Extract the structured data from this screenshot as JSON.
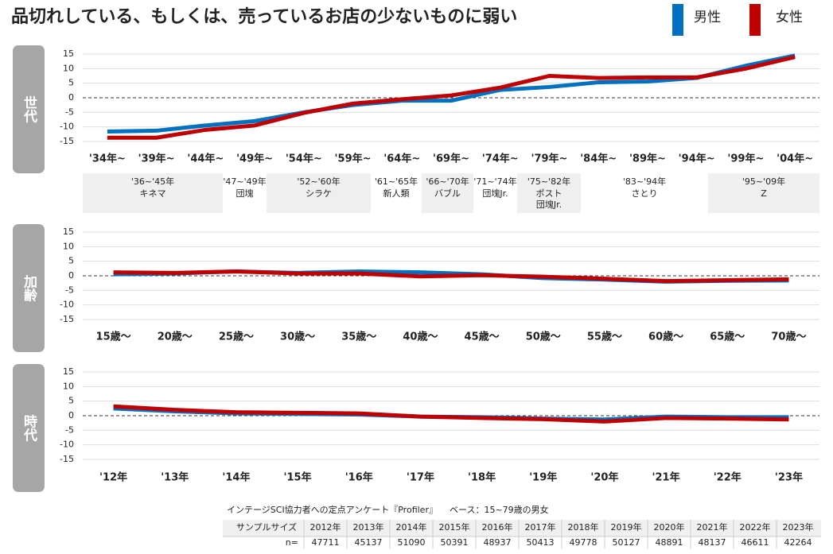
{
  "title": "品切れしている、もしくは、売っているお店の少ないものに弱い",
  "chart_data": [
    {
      "type": "line",
      "side_label": "世代",
      "categories": [
        "'34年~",
        "'39年~",
        "'44年~",
        "'49年~",
        "'54年~",
        "'59年~",
        "'64年~",
        "'69年~",
        "'74年~",
        "'79年~",
        "'84年~",
        "'89年~",
        "'94年~",
        "'99年~",
        "'04年~"
      ],
      "series": [
        {
          "name": "男性",
          "color": "#0070c0",
          "values": [
            -11.6,
            -11.3,
            -9.5,
            -8,
            -5,
            -2.5,
            -1,
            -1,
            2.7,
            3.7,
            5.3,
            5.6,
            6.8,
            11,
            14.5
          ]
        },
        {
          "name": "女性",
          "color": "#c00000",
          "values": [
            -13.7,
            -13.7,
            -11,
            -9.5,
            -5.2,
            -2,
            -0.5,
            0.8,
            3.5,
            7.5,
            6.8,
            7,
            7,
            10,
            14
          ]
        }
      ],
      "ylim": [
        -15,
        15
      ],
      "yticks": [
        15,
        10,
        5,
        0,
        -5,
        -10,
        -15
      ],
      "grid": true
    },
    {
      "type": "line",
      "side_label": "加齢",
      "categories": [
        "15歳～",
        "20歳～",
        "25歳～",
        "30歳～",
        "35歳～",
        "40歳～",
        "45歳～",
        "50歳～",
        "55歳～",
        "60歳～",
        "65歳～",
        "70歳～"
      ],
      "series": [
        {
          "name": "男性",
          "color": "#0070c0",
          "values": [
            0.5,
            0.8,
            1.5,
            1,
            1.5,
            1.2,
            0.5,
            -0.8,
            -1.3,
            -2,
            -1.7,
            -1.6
          ]
        },
        {
          "name": "女性",
          "color": "#c00000",
          "values": [
            1.2,
            1,
            1.5,
            0.8,
            0.8,
            -0.2,
            0.2,
            -0.3,
            -1,
            -1.8,
            -1.5,
            -1.2
          ]
        }
      ],
      "ylim": [
        -15,
        15
      ],
      "yticks": [
        15,
        10,
        5,
        0,
        -5,
        -10,
        -15
      ],
      "grid": true
    },
    {
      "type": "line",
      "side_label": "時代",
      "categories": [
        "'12年",
        "'13年",
        "'14年",
        "'15年",
        "'16年",
        "'17年",
        "'18年",
        "'19年",
        "'20年",
        "'21年",
        "'22年",
        "'23年"
      ],
      "series": [
        {
          "name": "男性",
          "color": "#0070c0",
          "values": [
            2.5,
            1.5,
            0.8,
            0.6,
            0.4,
            -0.3,
            -0.5,
            -1,
            -1.3,
            -0.3,
            -0.5,
            -0.5
          ]
        },
        {
          "name": "女性",
          "color": "#c00000",
          "values": [
            3.2,
            2,
            1.2,
            1,
            0.8,
            -0.3,
            -0.8,
            -1.2,
            -2,
            -0.8,
            -1,
            -1.3
          ]
        }
      ],
      "ylim": [
        -15,
        15
      ],
      "yticks": [
        15,
        10,
        5,
        0,
        -5,
        -10,
        -15
      ],
      "grid": true
    }
  ],
  "generations": [
    {
      "range": "'36~'45年",
      "name_lines": [
        "キネマ"
      ]
    },
    {
      "range": "'47~'49年",
      "name_lines": [
        "団塊"
      ]
    },
    {
      "range": "'52~'60年",
      "name_lines": [
        "シラケ"
      ]
    },
    {
      "range": "'61~'65年",
      "name_lines": [
        "新人類"
      ]
    },
    {
      "range": "'66~'70年",
      "name_lines": [
        "バブル"
      ]
    },
    {
      "range": "'71~'74年",
      "name_lines": [
        "団塊Jr."
      ]
    },
    {
      "range": "'75~'82年",
      "name_lines": [
        "ポスト",
        "団塊Jr."
      ]
    },
    {
      "range": "'83~'94年",
      "name_lines": [
        "さとり"
      ]
    },
    {
      "range": "'95~'09年",
      "name_lines": [
        "Z"
      ]
    }
  ],
  "footer": {
    "source": "インテージSCI協力者への定点アンケート『Profiler』",
    "base": "ベース：15~79歳の男女",
    "table": {
      "header": [
        "サンプルサイズ",
        "2012年",
        "2013年",
        "2014年",
        "2015年",
        "2016年",
        "2017年",
        "2018年",
        "2019年",
        "2020年",
        "2021年",
        "2022年",
        "2023年"
      ],
      "row": [
        "n=",
        "47711",
        "45137",
        "51090",
        "50391",
        "48937",
        "50413",
        "49778",
        "50127",
        "48891",
        "48137",
        "46611",
        "42264"
      ]
    }
  }
}
